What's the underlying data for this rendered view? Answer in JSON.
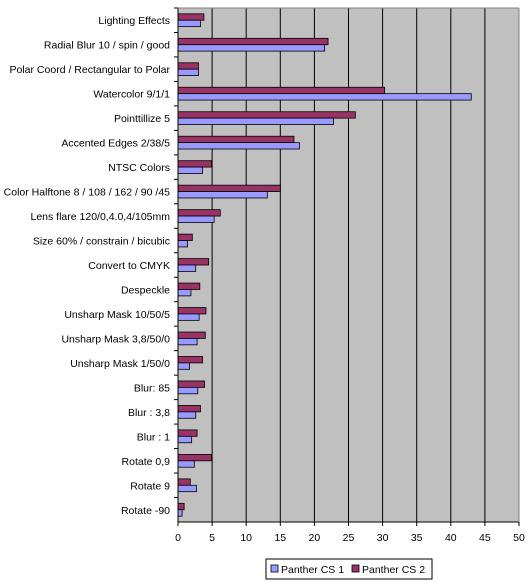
{
  "chart_data": {
    "type": "bar",
    "orientation": "horizontal",
    "categories": [
      "Lighting Effects",
      "Radial Blur 10 / spin / good",
      "Polar Coord / Rectangular to Polar",
      "Watercolor 9/1/1",
      "Pointtillize 5",
      "Accented Edges 2/38/5",
      "NTSC Colors",
      "Color Halftone 8 / 108 / 162 / 90 /45",
      "Lens flare 120/0,4.0,4/105mm",
      "Size 60% / constrain / bicubic",
      "Convert to CMYK",
      "Despeckle",
      "Unsharp Mask 10/50/5",
      "Unsharp Mask 3,8/50/0",
      "Unsharp Mask 1/50/0",
      "Blur: 85",
      "Blur : 3,8",
      "Blur : 1",
      "Rotate 0,9",
      "Rotate 9",
      "Rotate -90"
    ],
    "series": [
      {
        "name": "Panther CS 1",
        "color": "#9999ff",
        "values": [
          3.3,
          21.5,
          3.0,
          43.0,
          22.8,
          17.8,
          3.6,
          13.1,
          5.3,
          1.4,
          2.6,
          1.9,
          3.1,
          2.8,
          1.7,
          2.9,
          2.6,
          2.0,
          2.4,
          2.7,
          0.6
        ]
      },
      {
        "name": "Panther CS 2",
        "color": "#993366",
        "values": [
          3.8,
          22.0,
          3.0,
          30.3,
          26.0,
          17.0,
          4.9,
          15.0,
          6.2,
          2.1,
          4.5,
          3.2,
          4.1,
          4.0,
          3.6,
          3.9,
          3.3,
          2.8,
          4.9,
          1.8,
          0.9
        ]
      }
    ],
    "xlim": [
      0,
      50
    ],
    "xticks": [
      0,
      5,
      10,
      15,
      20,
      25,
      30,
      35,
      40,
      45,
      50
    ],
    "grid": true,
    "plot_background": "#c0c0c0",
    "legend_position": "bottom"
  }
}
